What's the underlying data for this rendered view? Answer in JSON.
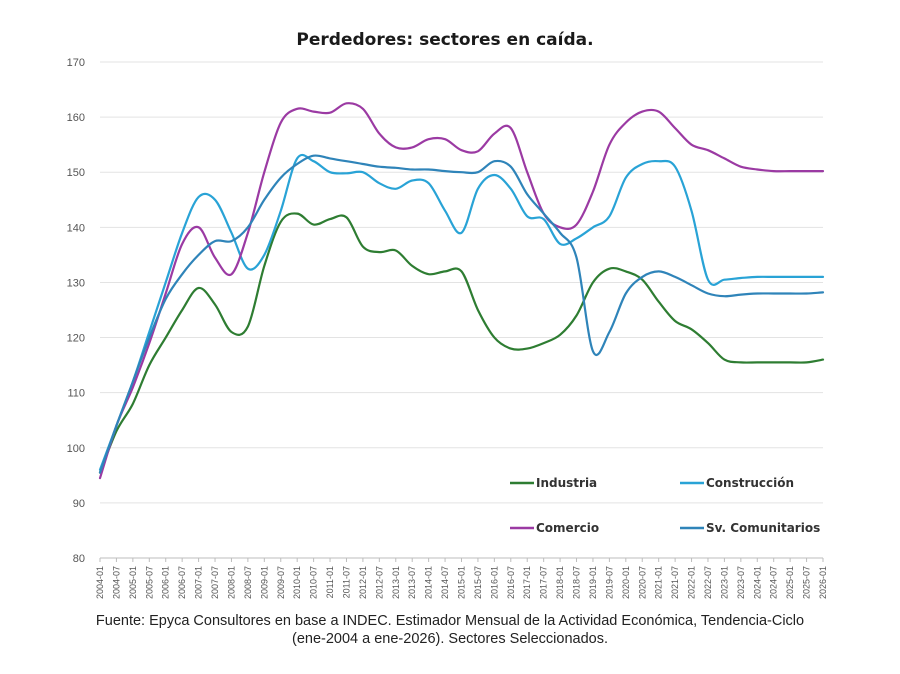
{
  "chart_data": {
    "type": "line",
    "title": "Perdedores: sectores en caída.",
    "xlabel": "",
    "ylabel": "",
    "ylim": [
      80,
      170
    ],
    "yticks": [
      80,
      90,
      100,
      110,
      120,
      130,
      140,
      150,
      160,
      170
    ],
    "grid": "horizontal",
    "legend_position": "lower-right",
    "x": [
      "2004-01",
      "2004-07",
      "2005-01",
      "2005-07",
      "2006-01",
      "2006-07",
      "2007-01",
      "2007-07",
      "2008-01",
      "2008-07",
      "2009-01",
      "2009-07",
      "2010-01",
      "2010-07",
      "2011-01",
      "2011-07",
      "2012-01",
      "2012-07",
      "2013-01",
      "2013-07",
      "2014-01",
      "2014-07",
      "2015-01",
      "2015-07",
      "2016-01",
      "2016-07",
      "2017-01",
      "2017-07",
      "2018-01",
      "2018-07",
      "2019-01",
      "2019-07",
      "2020-01",
      "2020-07",
      "2021-01",
      "2021-07",
      "2022-01",
      "2022-07",
      "2023-01",
      "2023-07",
      "2024-01",
      "2024-07",
      "2025-01",
      "2025-07",
      "2026-01"
    ],
    "series": [
      {
        "name": "Industria",
        "color": "#2e7d32",
        "values": [
          95.5,
          103,
          108,
          115,
          120,
          125,
          129,
          126,
          121,
          122,
          133,
          141,
          142.5,
          140.5,
          141.5,
          141.8,
          136.5,
          135.5,
          135.8,
          133,
          131.5,
          132,
          132,
          125,
          120,
          118,
          118,
          119,
          120.5,
          124,
          130,
          132.5,
          132,
          130.5,
          126.5,
          123,
          121.5,
          119,
          116,
          115.5,
          115.5,
          115.5,
          115.5,
          115.5,
          116
        ]
      },
      {
        "name": "Construcción",
        "color": "#29a3d6",
        "values": [
          96,
          104,
          112,
          121,
          130,
          139,
          145.5,
          145,
          139,
          132.5,
          135,
          143,
          152.5,
          152,
          150,
          149.8,
          150,
          148,
          147,
          148.5,
          148,
          143,
          139,
          147,
          149.5,
          147,
          142,
          141.5,
          137,
          138,
          140,
          142,
          149,
          151.5,
          152,
          151,
          143,
          130.5,
          130.5,
          130.8,
          131,
          131,
          131,
          131,
          131
        ]
      },
      {
        "name": "Comercio",
        "color": "#9b3aa3",
        "values": [
          94.5,
          104,
          111,
          119,
          128,
          137,
          140,
          134.5,
          131.5,
          139,
          150,
          159,
          161.5,
          161,
          160.8,
          162.5,
          161.5,
          157,
          154.5,
          154.5,
          156,
          156,
          154,
          153.8,
          157,
          158,
          150,
          142.5,
          140,
          140.5,
          146.5,
          155,
          159,
          161,
          161,
          158,
          155,
          154,
          152.5,
          151,
          150.5,
          150.2,
          150.2,
          150.2,
          150.2
        ]
      },
      {
        "name": "Sv. Comunitarios",
        "color": "#2f84b9",
        "values": [
          95.5,
          104,
          112,
          120,
          127,
          131.5,
          135,
          137.5,
          137.5,
          140,
          145,
          149,
          151.5,
          153,
          152.5,
          152,
          151.5,
          151,
          150.8,
          150.5,
          150.5,
          150.2,
          150,
          150,
          152,
          151,
          146,
          142.5,
          139,
          134.5,
          117.5,
          121,
          128,
          131,
          132,
          131,
          129.5,
          128,
          127.5,
          127.8,
          128,
          128,
          128,
          128,
          128.2
        ]
      }
    ],
    "source_caption": [
      "Fuente: Epyca Consultores en base a INDEC. Estimador Mensual de la Actividad Económica, Tendencia-Ciclo",
      "(ene-2004 a ene-2026). Sectores Seleccionados."
    ]
  }
}
